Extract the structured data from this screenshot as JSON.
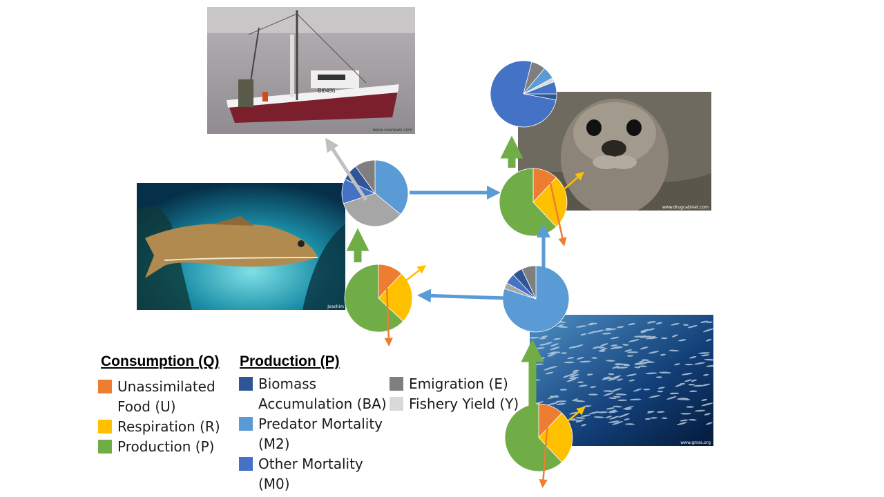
{
  "legend": {
    "consumption_header": "Consumption (Q)",
    "production_header": "Production (P)",
    "consumption_items": [
      {
        "label": "Unassimilated Food (U)",
        "color": "#ED7D31"
      },
      {
        "label": "Respiration (R)",
        "color": "#FFC000"
      },
      {
        "label": "Production (P)",
        "color": "#70AD47"
      }
    ],
    "production_items": [
      {
        "label": "Biomass Accumulation (BA)",
        "color": "#2F5597"
      },
      {
        "label": "Predator Mortality (M2)",
        "color": "#5B9BD5"
      },
      {
        "label": "Other Mortality (M0)",
        "color": "#4472C4"
      }
    ],
    "other_items": [
      {
        "label": "Emigration (E)",
        "color": "#7F7F7F"
      },
      {
        "label": "Fishery Yield (Y)",
        "color": "#D9D9D9"
      }
    ]
  },
  "photos": {
    "boat_credit": "www.voanews.com",
    "seal_credit": "www.drugcabinet.com",
    "cod_credit": "Joachim",
    "herring_credit": "www.gmss.org",
    "boat_hull_id": "BI0496"
  },
  "colors": {
    "flow_arrow": "#5B9BD5",
    "production_arrow": "#70AD47",
    "fishery_arrow": "#BFBFBF",
    "respiration_arrow": "#FFC000",
    "unassimilated_arrow": "#ED7D31"
  },
  "pies": {
    "seal_production": [
      {
        "name": "Biomass Accumulation (BA)",
        "value": 0.03,
        "color": "#2F5597"
      },
      {
        "name": "Other Mortality (M0)",
        "value": 0.76,
        "color": "#4472C4"
      },
      {
        "name": "Emigration (E)",
        "value": 0.07,
        "color": "#7F7F7F"
      },
      {
        "name": "Predator Mortality (M2)",
        "value": 0.06,
        "color": "#5B9BD5"
      },
      {
        "name": "Fishery Yield (Y)",
        "value": 0.02,
        "color": "#D9D9D9"
      },
      {
        "name": "Other Mortality (M0)",
        "value": 0.06,
        "color": "#4472C4"
      }
    ],
    "seal_consumption": [
      {
        "name": "Unassimilated Food (U)",
        "value": 0.12,
        "color": "#ED7D31"
      },
      {
        "name": "Respiration (R)",
        "value": 0.26,
        "color": "#FFC000"
      },
      {
        "name": "Production (P)",
        "value": 0.62,
        "color": "#70AD47"
      }
    ],
    "cod_production": [
      {
        "name": "Predator Mortality (M2)",
        "value": 0.36,
        "color": "#5B9BD5"
      },
      {
        "name": "Fishery Yield (Y)",
        "value": 0.34,
        "color": "#A6A6A6"
      },
      {
        "name": "Other Mortality (M0)",
        "value": 0.12,
        "color": "#4472C4"
      },
      {
        "name": "Biomass Accumulation (BA)",
        "value": 0.08,
        "color": "#2F5597"
      },
      {
        "name": "Emigration (E)",
        "value": 0.1,
        "color": "#7F7F7F"
      }
    ],
    "cod_consumption": [
      {
        "name": "Unassimilated Food (U)",
        "value": 0.12,
        "color": "#ED7D31"
      },
      {
        "name": "Respiration (R)",
        "value": 0.25,
        "color": "#FFC000"
      },
      {
        "name": "Production (P)",
        "value": 0.63,
        "color": "#70AD47"
      }
    ],
    "herring_production": [
      {
        "name": "Predator Mortality (M2)",
        "value": 0.8,
        "color": "#5B9BD5"
      },
      {
        "name": "Fishery Yield (Y)",
        "value": 0.03,
        "color": "#A6A6A6"
      },
      {
        "name": "Other Mortality (M0)",
        "value": 0.05,
        "color": "#4472C4"
      },
      {
        "name": "Biomass Accumulation (BA)",
        "value": 0.05,
        "color": "#2F5597"
      },
      {
        "name": "Emigration (E)",
        "value": 0.07,
        "color": "#7F7F7F"
      }
    ],
    "herring_consumption": [
      {
        "name": "Unassimilated Food (U)",
        "value": 0.12,
        "color": "#ED7D31"
      },
      {
        "name": "Respiration (R)",
        "value": 0.26,
        "color": "#FFC000"
      },
      {
        "name": "Production (P)",
        "value": 0.62,
        "color": "#70AD47"
      }
    ]
  }
}
